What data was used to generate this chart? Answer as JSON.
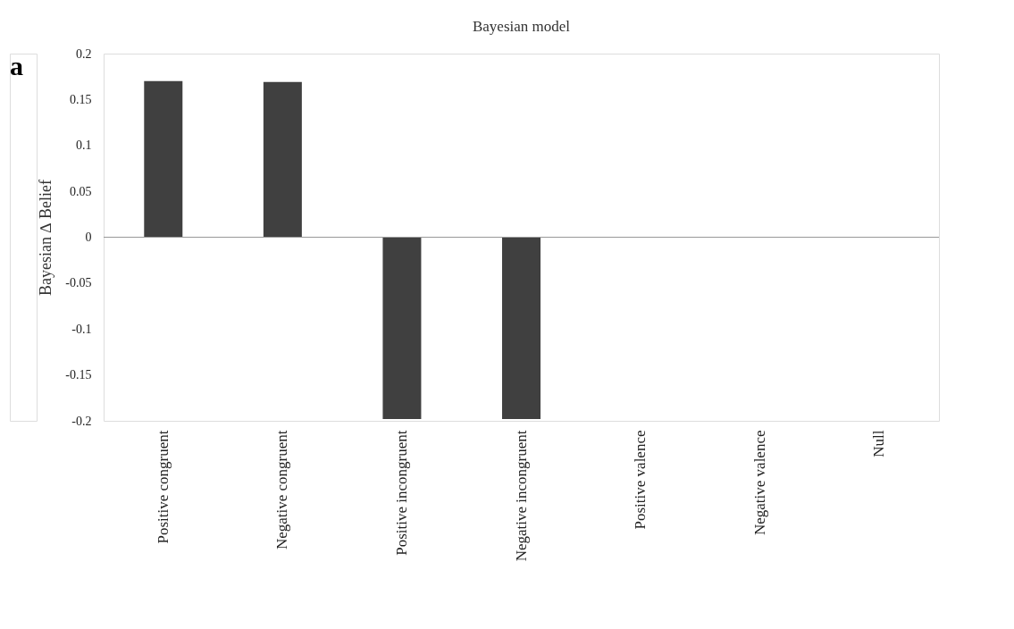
{
  "chart_data": {
    "type": "bar",
    "title": "Bayesian model",
    "ylabel": "Bayesian ∆ Belief",
    "categories": [
      "Positive congruent",
      "Negative congruent",
      "Positive incongruent",
      "Negative incongruent",
      "Positive valence",
      "Negative valence",
      "Null"
    ],
    "series": [
      {
        "color": "#404040",
        "values": [
          0.17,
          0.169,
          -0.198,
          -0.198,
          0,
          0,
          0
        ]
      }
    ],
    "ylim": [
      -0.2,
      0.2
    ],
    "yticks": [
      -0.2,
      -0.15,
      -0.1,
      -0.05,
      0,
      0.05,
      0.1,
      0.15,
      0.2
    ],
    "annotations": [
      "a"
    ]
  }
}
